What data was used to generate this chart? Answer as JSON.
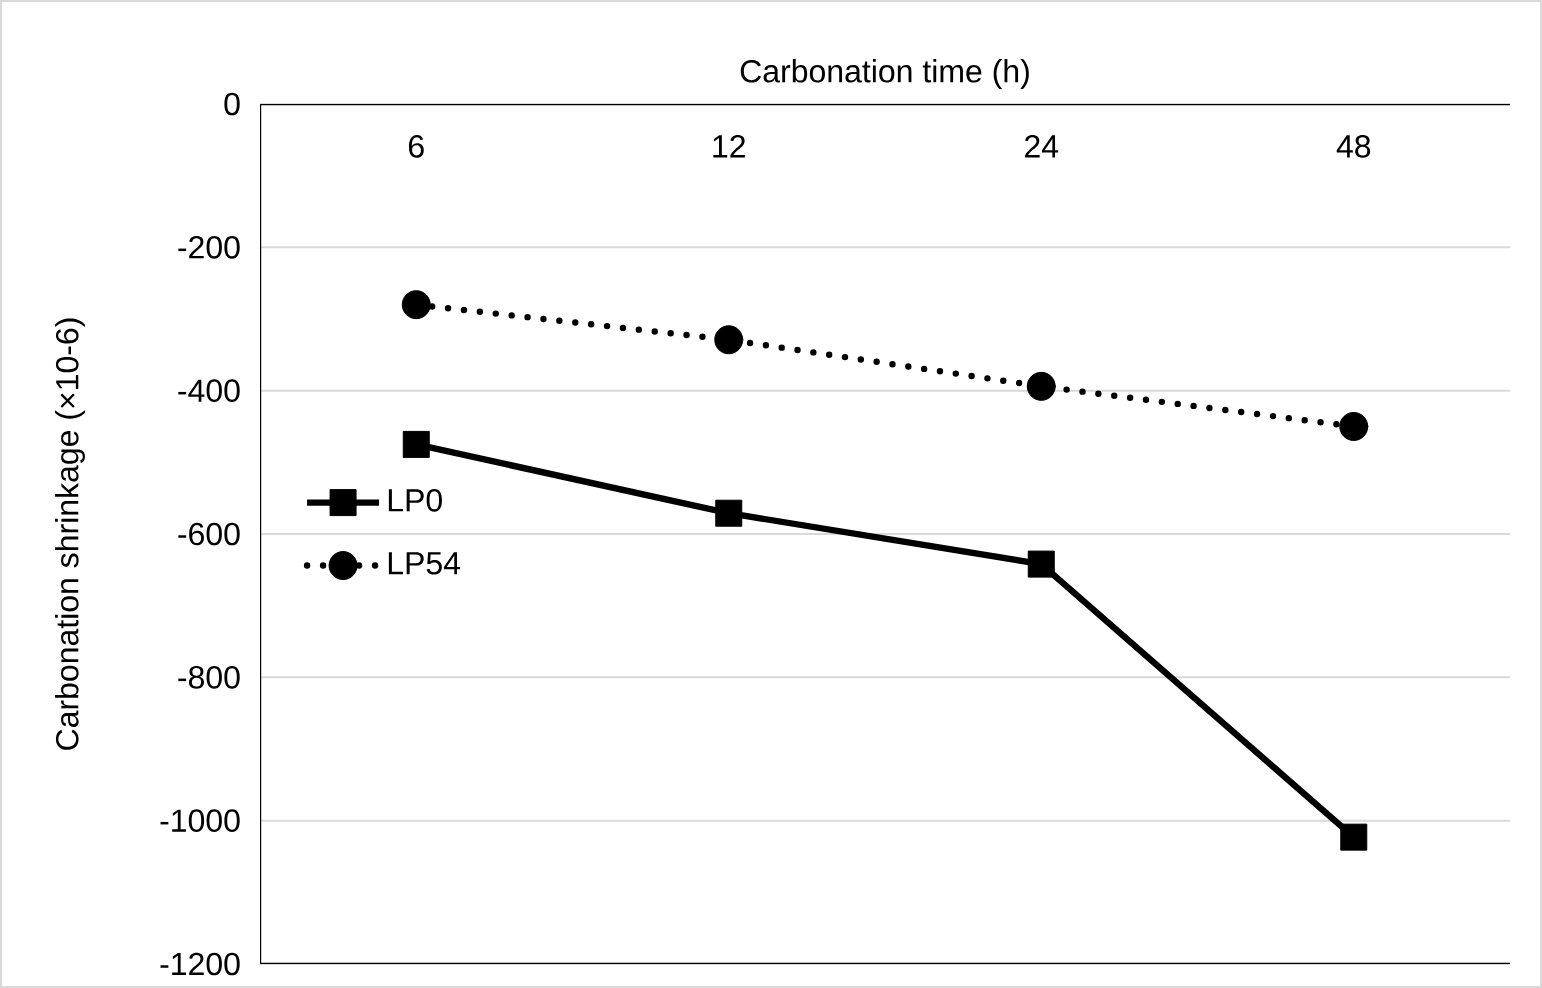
{
  "chart_data": {
    "type": "line",
    "xlabel": "Carbonation time (h)",
    "ylabel": "Carbonation shrinkage (×10-6)",
    "categories": [
      "6",
      "12",
      "24",
      "48"
    ],
    "ylim": [
      -1200,
      0
    ],
    "yticks": [
      -1200,
      -1000,
      -800,
      -600,
      -400,
      -200,
      0
    ],
    "grid": "y",
    "legend": "left",
    "series": [
      {
        "name": "LP0",
        "color": "#000000",
        "marker": "square",
        "line_style": "solid",
        "values": [
          -475,
          -571,
          -642,
          -1023
        ]
      },
      {
        "name": "LP54",
        "color": "#000000",
        "marker": "circle",
        "line_style": "dotted",
        "values": [
          -280,
          -329,
          -394,
          -450
        ]
      }
    ]
  }
}
